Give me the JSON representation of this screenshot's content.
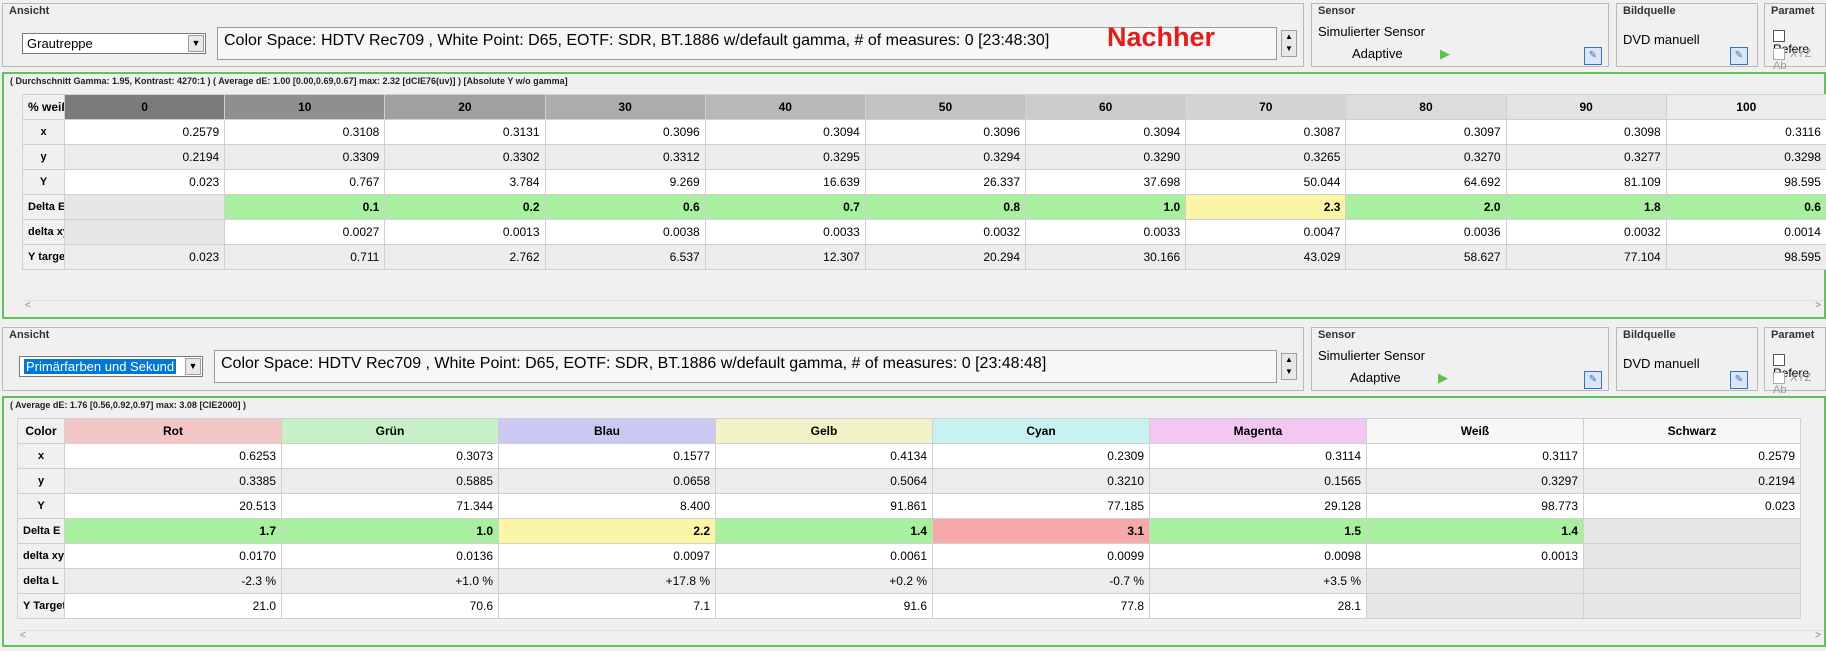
{
  "top": {
    "ansicht_title": "Ansicht",
    "view_select": "Grautreppe",
    "info_text": "Color Space: HDTV Rec709 , White Point: D65, EOTF:  SDR, BT.1886 w/default gamma, # of measures: 0 [23:48:30]",
    "nachher": "Nachher",
    "sensor_title": "Sensor",
    "sensor_name": "Simulierter Sensor",
    "sensor_mode": "Adaptive",
    "bildquelle_title": "Bildquelle",
    "bildquelle_value": "DVD manuell",
    "param_title": "Paramet",
    "param_ref": "Refere",
    "param_xyz": "XYZ Ab",
    "stats": "( Durchschnitt Gamma: 1.95, Kontrast: 4270:1 ) ( Average dE: 1.00 [0.00,0.69,0.67] max: 2.32 [dCIE76(uv)] ) [Absolute Y w/o gamma]",
    "corner": "% weiß",
    "columns": [
      "0",
      "10",
      "20",
      "30",
      "40",
      "50",
      "60",
      "70",
      "80",
      "90",
      "100"
    ],
    "header_colors": [
      "#7b7b7b",
      "#8f8f8f",
      "#a0a0a0",
      "#acacac",
      "#b8b8b8",
      "#c2c2c2",
      "#cbcbcb",
      "#d4d4d4",
      "#dcdcdc",
      "#e4e4e4",
      "#ececec"
    ],
    "rows": [
      {
        "label": "x",
        "cells": [
          "0.2579",
          "0.3108",
          "0.3131",
          "0.3096",
          "0.3094",
          "0.3096",
          "0.3094",
          "0.3087",
          "0.3097",
          "0.3098",
          "0.3116"
        ]
      },
      {
        "label": "y",
        "cells": [
          "0.2194",
          "0.3309",
          "0.3302",
          "0.3312",
          "0.3295",
          "0.3294",
          "0.3290",
          "0.3265",
          "0.3270",
          "0.3277",
          "0.3298"
        ]
      },
      {
        "label": "Y",
        "cells": [
          "0.023",
          "0.767",
          "3.784",
          "9.269",
          "16.639",
          "26.337",
          "37.698",
          "50.044",
          "64.692",
          "81.109",
          "98.595"
        ]
      },
      {
        "label": "Delta E",
        "cells": [
          "",
          "0.1",
          "0.2",
          "0.6",
          "0.7",
          "0.8",
          "1.0",
          "2.3",
          "2.0",
          "1.8",
          "0.6"
        ]
      },
      {
        "label": "delta xy",
        "cells": [
          "",
          "0.0027",
          "0.0013",
          "0.0038",
          "0.0033",
          "0.0032",
          "0.0033",
          "0.0047",
          "0.0036",
          "0.0032",
          "0.0014"
        ]
      },
      {
        "label": "Y target",
        "cells": [
          "0.023",
          "0.711",
          "2.762",
          "6.537",
          "12.307",
          "20.294",
          "30.166",
          "43.029",
          "58.627",
          "77.104",
          "98.595"
        ]
      }
    ],
    "deltaE_colors": [
      "#e6e6e6",
      "#a8f0a0",
      "#a8f0a0",
      "#a8f0a0",
      "#a8f0a0",
      "#a8f0a0",
      "#a8f0a0",
      "#fbf5a6",
      "#a8f0a0",
      "#a8f0a0",
      "#a8f0a0"
    ]
  },
  "bottom": {
    "ansicht_title": "Ansicht",
    "view_select": "Primärfarben und Sekund",
    "info_text": "Color Space: HDTV Rec709 , White Point: D65, EOTF:  SDR, BT.1886 w/default gamma, # of measures: 0 [23:48:48]",
    "sensor_title": "Sensor",
    "sensor_name": "Simulierter Sensor",
    "sensor_mode": "Adaptive",
    "bildquelle_title": "Bildquelle",
    "bildquelle_value": "DVD manuell",
    "param_title": "Paramet",
    "param_ref": "Refere",
    "param_xyz": "XYZ Ab",
    "stats": "( Average dE: 1.76 [0.56,0.92,0.97] max: 3.08 [CIE2000] )",
    "corner": "Color",
    "columns": [
      "Rot",
      "Grün",
      "Blau",
      "Gelb",
      "Cyan",
      "Magenta",
      "Weiß",
      "Schwarz"
    ],
    "header_colors": [
      "#f4c6c6",
      "#c8f0c8",
      "#c9c9f2",
      "#f2f2c8",
      "#c8f2f2",
      "#f2c8f2",
      "#f7f7f7",
      "#f7f7f7"
    ],
    "rows": [
      {
        "label": "x",
        "cells": [
          "0.6253",
          "0.3073",
          "0.1577",
          "0.4134",
          "0.2309",
          "0.3114",
          "0.3117",
          "0.2579"
        ]
      },
      {
        "label": "y",
        "cells": [
          "0.3385",
          "0.5885",
          "0.0658",
          "0.5064",
          "0.3210",
          "0.1565",
          "0.3297",
          "0.2194"
        ]
      },
      {
        "label": "Y",
        "cells": [
          "20.513",
          "71.344",
          "8.400",
          "91.861",
          "77.185",
          "29.128",
          "98.773",
          "0.023"
        ]
      },
      {
        "label": "Delta E",
        "cells": [
          "1.7",
          "1.0",
          "2.2",
          "1.4",
          "3.1",
          "1.5",
          "1.4",
          ""
        ]
      },
      {
        "label": "delta xy",
        "cells": [
          "0.0170",
          "0.0136",
          "0.0097",
          "0.0061",
          "0.0099",
          "0.0098",
          "0.0013",
          ""
        ]
      },
      {
        "label": "delta L",
        "cells": [
          "-2.3 %",
          "+1.0 %",
          "+17.8 %",
          "+0.2 %",
          "-0.7 %",
          "+3.5 %",
          "",
          ""
        ]
      },
      {
        "label": "Y Target",
        "cells": [
          "21.0",
          "70.6",
          "7.1",
          "91.6",
          "77.8",
          "28.1",
          "",
          ""
        ]
      }
    ],
    "deltaE_colors": [
      "#a8f0a0",
      "#a8f0a0",
      "#fbf5a6",
      "#a8f0a0",
      "#f7a8a8",
      "#a8f0a0",
      "#a8f0a0",
      "#e6e6e6"
    ]
  }
}
